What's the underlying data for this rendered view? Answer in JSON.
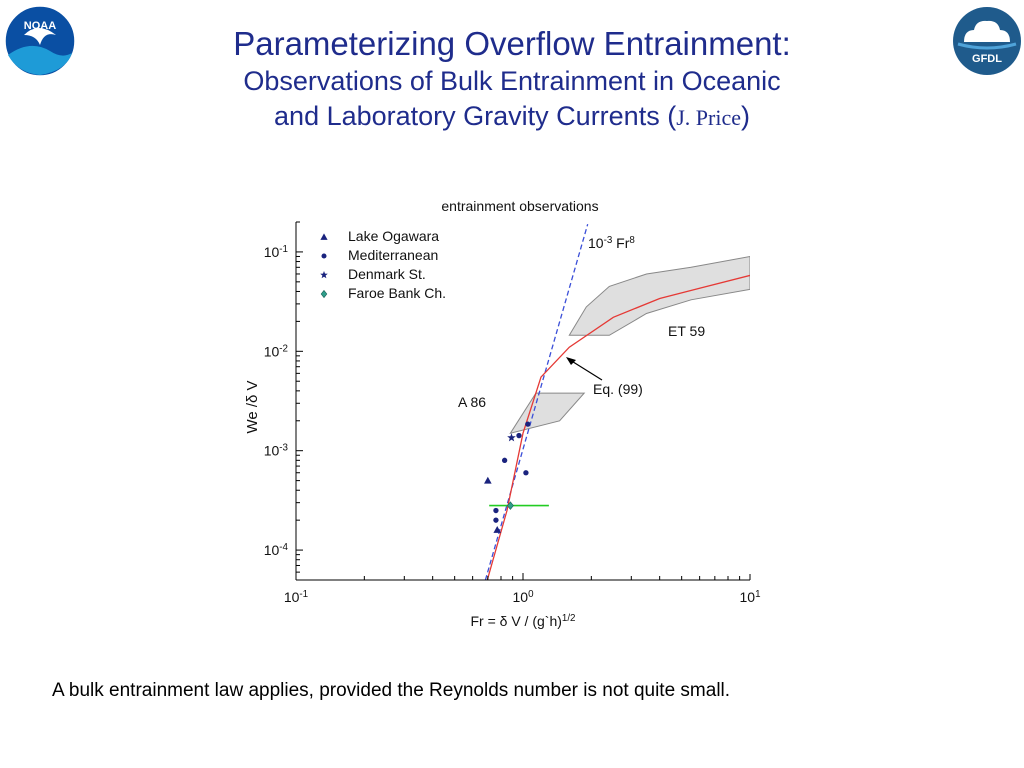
{
  "title": {
    "line1": "Parameterizing Overflow Entrainment:",
    "line2": "Observations of Bulk Entrainment in Oceanic",
    "line3_prefix": "and Laboratory Gravity Currents (",
    "author": "J. Price",
    "line3_suffix": ")"
  },
  "logos": {
    "left": "NOAA",
    "right": "GFDL"
  },
  "caption": "A bulk entrainment law applies, provided the Reynolds number is not quite small.",
  "colors": {
    "title": "#1f2c8c",
    "markers": "#1a237e",
    "faroe": "#2e9e8a",
    "fit_line": "#3b4fd8",
    "model_curve": "#e53935",
    "green_bar": "#22cc22",
    "shaded": "#d9d9d9"
  },
  "chart_data": {
    "type": "scatter",
    "title": "entrainment observations",
    "xlabel": "Fr = δ V / (g`h)^1/2",
    "ylabel": "We /δ V",
    "xscale": "log",
    "yscale": "log",
    "xlim": [
      0.1,
      10
    ],
    "ylim": [
      5e-05,
      0.2
    ],
    "x_ticks": [
      "10^-1",
      "10^0",
      "10^1"
    ],
    "y_ticks": [
      "10^-1",
      "10^-2",
      "10^-3",
      "10^-4"
    ],
    "legend_position": "top-left",
    "series": [
      {
        "name": "Lake Ogawara",
        "marker": "triangle",
        "points": [
          [
            0.7,
            0.0005
          ],
          [
            0.77,
            0.00016
          ]
        ]
      },
      {
        "name": "Mediterranean",
        "marker": "dot",
        "points": [
          [
            0.76,
            0.00025
          ],
          [
            0.76,
            0.0002
          ],
          [
            0.83,
            0.0008
          ],
          [
            0.96,
            0.00142
          ],
          [
            1.03,
            0.0006
          ],
          [
            1.05,
            0.00185
          ]
        ]
      },
      {
        "name": "Denmark St.",
        "marker": "star",
        "points": [
          [
            0.89,
            0.00135
          ]
        ]
      },
      {
        "name": "Faroe Bank Ch.",
        "marker": "diamond",
        "points": [
          [
            0.88,
            0.00028
          ]
        ]
      }
    ],
    "lines": [
      {
        "label": "10^-3 Fr^8",
        "style": "dashed",
        "x": [
          0.683,
          1.928
        ],
        "y": [
          5e-05,
          0.19
        ]
      },
      {
        "label": "Eq. (99)",
        "style": "solid",
        "x": [
          0.696,
          0.85,
          1.0,
          1.2,
          1.6,
          2.5,
          4.0,
          6.0,
          10.0
        ],
        "y": [
          5e-05,
          0.00025,
          0.0015,
          0.0055,
          0.011,
          0.022,
          0.034,
          0.043,
          0.058
        ]
      },
      {
        "label": "",
        "style": "solid",
        "x": [
          0.71,
          1.3
        ],
        "y": [
          0.00028,
          0.00028
        ]
      }
    ],
    "regions": [
      {
        "label": "A 86",
        "x": [
          0.88,
          1.14,
          1.86,
          1.45,
          0.88
        ],
        "y": [
          0.0015,
          0.0038,
          0.0038,
          0.002,
          0.0015
        ]
      },
      {
        "label": "ET 59",
        "x": [
          1.6,
          1.9,
          2.4,
          3.5,
          5.5,
          10.0,
          10.0,
          5.5,
          3.5,
          2.4,
          1.6
        ],
        "y": [
          0.0145,
          0.028,
          0.045,
          0.06,
          0.07,
          0.09,
          0.042,
          0.033,
          0.024,
          0.0145,
          0.0145
        ]
      }
    ],
    "annotations": [
      {
        "text": "10^-3 Fr^8"
      },
      {
        "text": "ET 59"
      },
      {
        "text": "Eq. (99)"
      },
      {
        "text": "A 86"
      }
    ]
  }
}
